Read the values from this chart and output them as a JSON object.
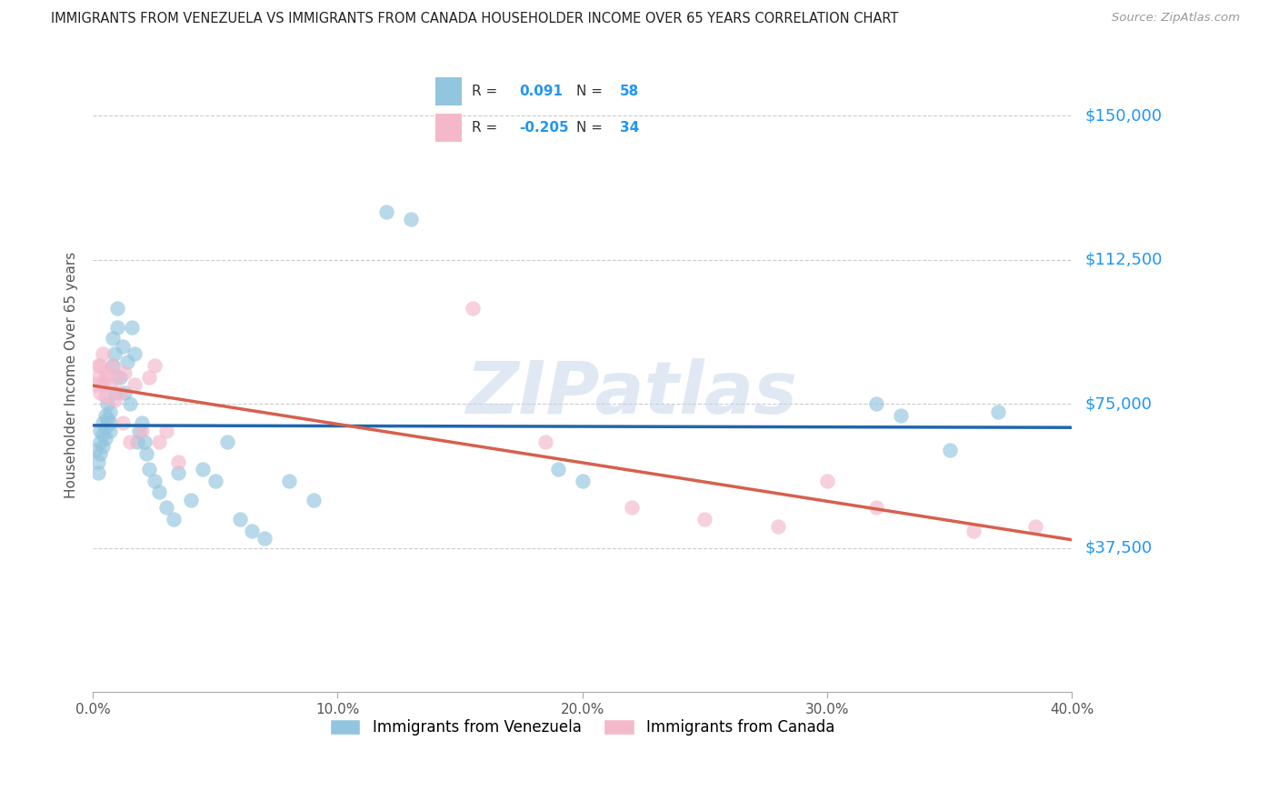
{
  "title": "IMMIGRANTS FROM VENEZUELA VS IMMIGRANTS FROM CANADA HOUSEHOLDER INCOME OVER 65 YEARS CORRELATION CHART",
  "source": "Source: ZipAtlas.com",
  "ylabel": "Householder Income Over 65 years",
  "ylabel_ticks": [
    "$37,500",
    "$75,000",
    "$112,500",
    "$150,000"
  ],
  "ylabel_values": [
    37500,
    75000,
    112500,
    150000
  ],
  "xlim": [
    0.0,
    0.4
  ],
  "ylim": [
    0,
    165000
  ],
  "watermark": "ZIPatlas",
  "legend_blue_r": "0.091",
  "legend_blue_n": "58",
  "legend_pink_r": "-0.205",
  "legend_pink_n": "34",
  "legend_blue_label": "Immigrants from Venezuela",
  "legend_pink_label": "Immigrants from Canada",
  "blue_color": "#92c5de",
  "pink_color": "#f4b8cb",
  "line_blue": "#2166ac",
  "line_pink": "#d6604d",
  "blue_scatter_x": [
    0.001,
    0.002,
    0.002,
    0.003,
    0.003,
    0.003,
    0.004,
    0.004,
    0.004,
    0.005,
    0.005,
    0.005,
    0.006,
    0.006,
    0.007,
    0.007,
    0.007,
    0.008,
    0.008,
    0.009,
    0.009,
    0.01,
    0.01,
    0.011,
    0.012,
    0.013,
    0.014,
    0.015,
    0.016,
    0.017,
    0.018,
    0.019,
    0.02,
    0.021,
    0.022,
    0.023,
    0.025,
    0.027,
    0.03,
    0.033,
    0.035,
    0.04,
    0.045,
    0.05,
    0.055,
    0.06,
    0.065,
    0.07,
    0.08,
    0.09,
    0.12,
    0.13,
    0.19,
    0.2,
    0.32,
    0.33,
    0.35,
    0.37
  ],
  "blue_scatter_y": [
    63000,
    60000,
    57000,
    68000,
    65000,
    62000,
    70000,
    67000,
    64000,
    72000,
    69000,
    66000,
    75000,
    71000,
    68000,
    73000,
    70000,
    85000,
    92000,
    88000,
    78000,
    95000,
    100000,
    82000,
    90000,
    78000,
    86000,
    75000,
    95000,
    88000,
    65000,
    68000,
    70000,
    65000,
    62000,
    58000,
    55000,
    52000,
    48000,
    45000,
    57000,
    50000,
    58000,
    55000,
    65000,
    45000,
    42000,
    40000,
    55000,
    50000,
    125000,
    123000,
    58000,
    55000,
    75000,
    72000,
    63000,
    73000
  ],
  "pink_scatter_x": [
    0.001,
    0.002,
    0.002,
    0.003,
    0.003,
    0.004,
    0.004,
    0.005,
    0.005,
    0.006,
    0.007,
    0.008,
    0.009,
    0.01,
    0.011,
    0.012,
    0.013,
    0.015,
    0.017,
    0.02,
    0.023,
    0.025,
    0.027,
    0.03,
    0.035,
    0.155,
    0.185,
    0.22,
    0.25,
    0.28,
    0.3,
    0.32,
    0.36,
    0.385
  ],
  "pink_scatter_y": [
    80000,
    85000,
    82000,
    78000,
    85000,
    80000,
    88000,
    82000,
    77000,
    83000,
    80000,
    85000,
    76000,
    82000,
    78000,
    70000,
    83000,
    65000,
    80000,
    68000,
    82000,
    85000,
    65000,
    68000,
    60000,
    100000,
    65000,
    48000,
    45000,
    43000,
    55000,
    48000,
    42000,
    43000
  ]
}
